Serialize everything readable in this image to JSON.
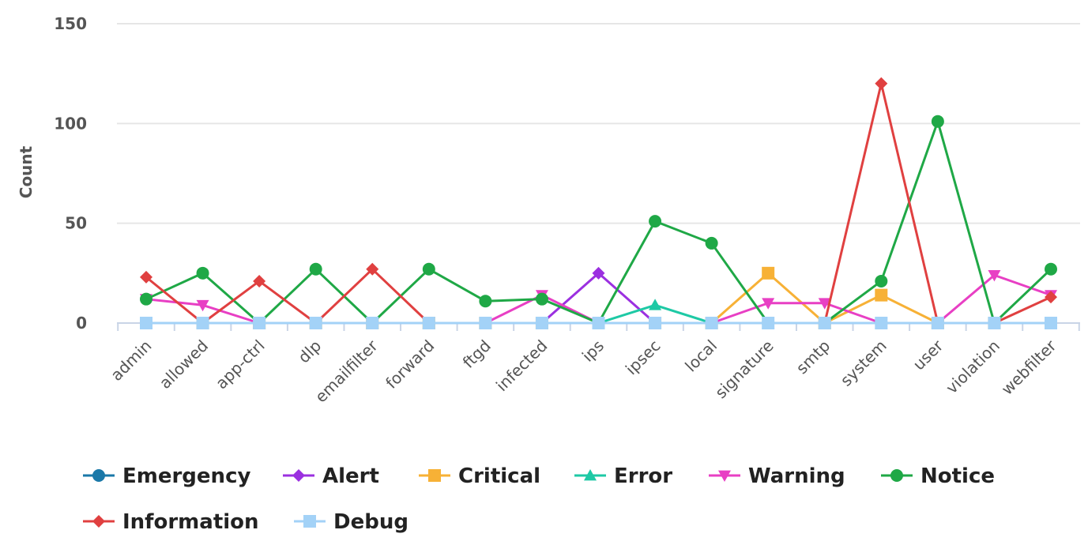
{
  "chart_data": {
    "type": "line",
    "title": "",
    "xlabel": "",
    "ylabel": "Count",
    "ylim": [
      0,
      150
    ],
    "yticks": [
      0,
      50,
      100,
      150
    ],
    "grid": true,
    "legend_position": "bottom",
    "categories": [
      "admin",
      "allowed",
      "app-ctrl",
      "dlp",
      "emailfilter",
      "forward",
      "ftgd",
      "infected",
      "ips",
      "ipsec",
      "local",
      "signature",
      "smtp",
      "system",
      "user",
      "violation",
      "webfilter"
    ],
    "series": [
      {
        "name": "Emergency",
        "color": "#1a78a8",
        "marker": "circle",
        "values": [
          0,
          0,
          0,
          0,
          0,
          0,
          0,
          0,
          0,
          0,
          0,
          0,
          0,
          0,
          0,
          0,
          0
        ]
      },
      {
        "name": "Alert",
        "color": "#9b30e0",
        "marker": "diamond",
        "values": [
          0,
          0,
          0,
          0,
          0,
          0,
          0,
          0,
          25,
          0,
          0,
          0,
          0,
          0,
          0,
          0,
          0
        ]
      },
      {
        "name": "Critical",
        "color": "#f7b136",
        "marker": "square",
        "values": [
          0,
          0,
          0,
          0,
          0,
          0,
          0,
          0,
          0,
          0,
          0,
          25,
          0,
          14,
          0,
          0,
          0
        ]
      },
      {
        "name": "Error",
        "color": "#1ec9a5",
        "marker": "triangle",
        "values": [
          0,
          0,
          0,
          0,
          0,
          0,
          0,
          0,
          0,
          9,
          0,
          0,
          0,
          0,
          0,
          0,
          0
        ]
      },
      {
        "name": "Warning",
        "color": "#e83fc4",
        "marker": "triangle-down",
        "values": [
          12,
          9,
          0,
          0,
          0,
          0,
          0,
          14,
          0,
          0,
          0,
          10,
          10,
          0,
          0,
          24,
          14
        ]
      },
      {
        "name": "Notice",
        "color": "#1fa846",
        "marker": "circle",
        "values": [
          12,
          25,
          0,
          27,
          0,
          27,
          11,
          12,
          0,
          51,
          40,
          0,
          0,
          21,
          101,
          0,
          27
        ]
      },
      {
        "name": "Information",
        "color": "#e04040",
        "marker": "diamond",
        "values": [
          23,
          0,
          21,
          0,
          27,
          0,
          0,
          0,
          0,
          0,
          0,
          0,
          0,
          120,
          0,
          0,
          13
        ]
      },
      {
        "name": "Debug",
        "color": "#a3d2f7",
        "marker": "square",
        "values": [
          0,
          0,
          0,
          0,
          0,
          0,
          0,
          0,
          0,
          0,
          0,
          0,
          0,
          0,
          0,
          0,
          0
        ]
      }
    ]
  }
}
